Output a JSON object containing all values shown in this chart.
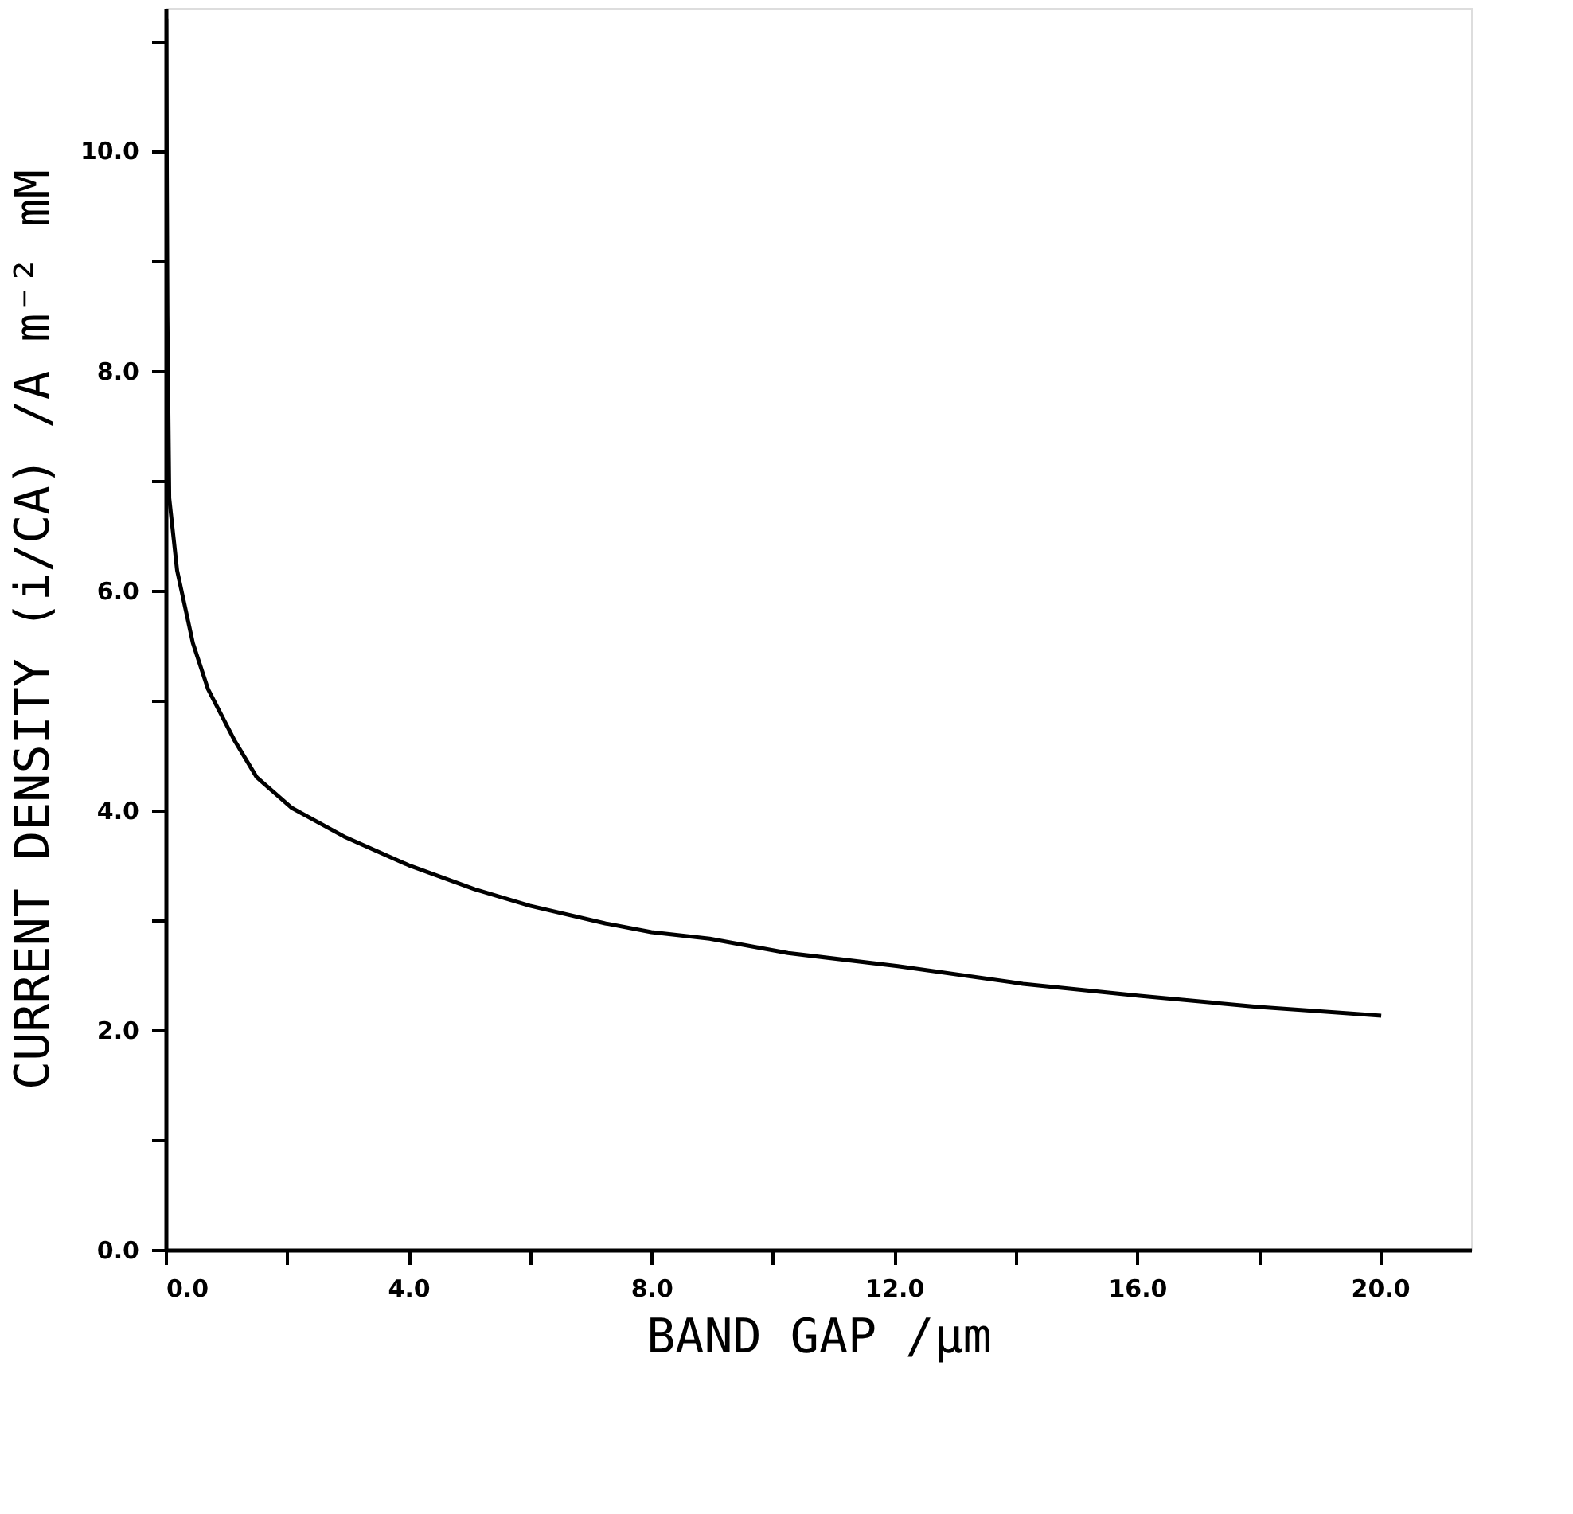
{
  "chart_data": {
    "type": "line",
    "xlabel": "BAND GAP /μm",
    "ylabel": "CURRENT DENSITY (i/CA) /A m⁻² mM",
    "x": [
      0.01,
      0.03,
      0.06,
      0.19,
      0.45,
      0.7,
      1.13,
      1.5,
      2.08,
      2.94,
      4.0,
      5.09,
      6.0,
      7.24,
      8.0,
      8.96,
      10.25,
      12.06,
      14.12,
      16.04,
      18.0,
      20.02
    ],
    "series": [
      {
        "color": "#000000",
        "values": [
          11.2,
          8.5,
          6.84,
          6.18,
          5.52,
          5.1,
          4.64,
          4.3,
          4.02,
          3.76,
          3.5,
          3.28,
          3.13,
          2.97,
          2.89,
          2.83,
          2.7,
          2.58,
          2.42,
          2.31,
          2.21,
          2.13
        ]
      }
    ],
    "xlim": [
      0,
      21.5
    ],
    "ylim": [
      0,
      11.3
    ],
    "xticks": [
      {
        "value": 0,
        "label": "0.0"
      },
      {
        "value": 2,
        "label": null
      },
      {
        "value": 4,
        "label": "4.0"
      },
      {
        "value": 6,
        "label": null
      },
      {
        "value": 8,
        "label": "8.0"
      },
      {
        "value": 10,
        "label": null
      },
      {
        "value": 12,
        "label": "12.0"
      },
      {
        "value": 14,
        "label": null
      },
      {
        "value": 16,
        "label": "16.0"
      },
      {
        "value": 18,
        "label": null
      },
      {
        "value": 20,
        "label": "20.0"
      }
    ],
    "yticks": [
      {
        "value": 0,
        "label": "0.0"
      },
      {
        "value": 1,
        "label": null
      },
      {
        "value": 2,
        "label": "2.0"
      },
      {
        "value": 3,
        "label": null
      },
      {
        "value": 4,
        "label": "4.0"
      },
      {
        "value": 5,
        "label": null
      },
      {
        "value": 6,
        "label": "6.0"
      },
      {
        "value": 7,
        "label": null
      },
      {
        "value": 8,
        "label": "8.0"
      },
      {
        "value": 9,
        "label": null
      },
      {
        "value": 10,
        "label": "10.0"
      },
      {
        "value": 11,
        "label": null
      }
    ],
    "grid": false,
    "legend": false,
    "marker": "none",
    "line_style": "solid"
  }
}
